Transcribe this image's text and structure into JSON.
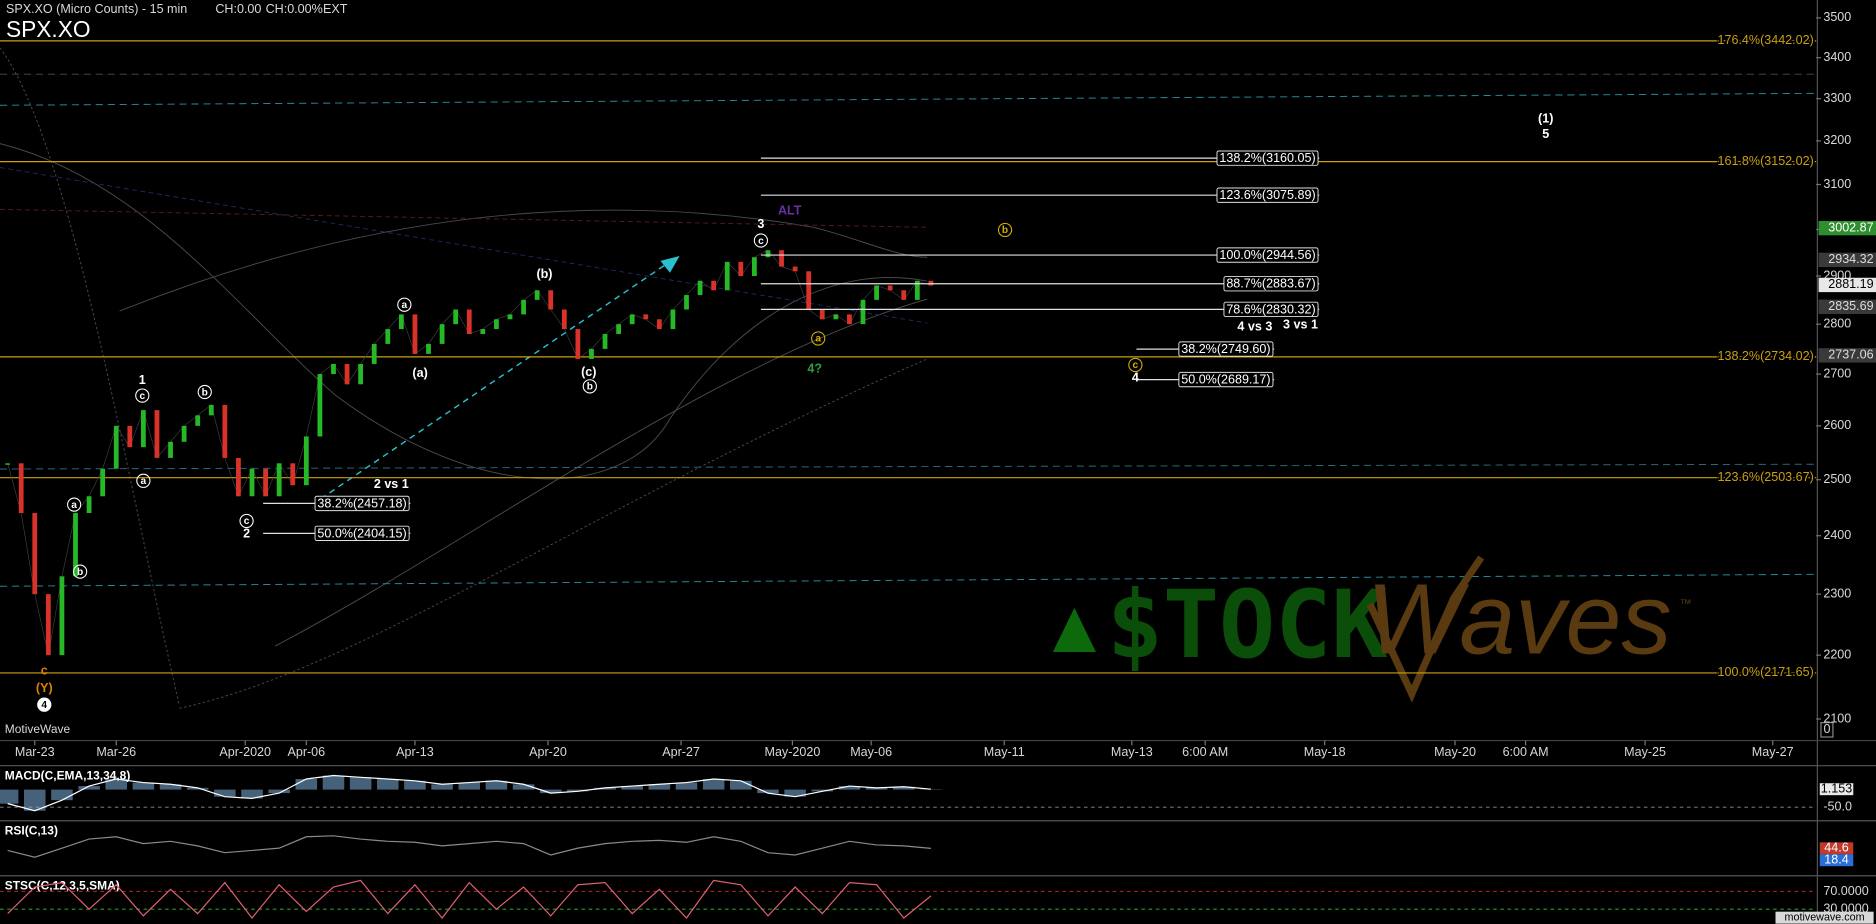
{
  "header": {
    "title": "SPX.XO (Micro Counts) - 15 min",
    "change": "CH:0.00",
    "change_pct": "CH:0.00%",
    "session": "EXT",
    "brand": "MotiveWave",
    "footer": "motivewave.com",
    "axis_corner": "0"
  },
  "watermark": {
    "left": "$TOCK",
    "right": "Waves",
    "tm": "™"
  },
  "chart_data": [
    {
      "type": "line",
      "title": "SPX.XO",
      "log_scale": true,
      "x": [
        -1,
        -0.5,
        0,
        0.5,
        1,
        1.5,
        2,
        2.5,
        3,
        3.5,
        4,
        4.5,
        5,
        5.5,
        6,
        6.5,
        7,
        7.5,
        8,
        8.5,
        9,
        9.5,
        10,
        10.5,
        11,
        11.5,
        12,
        12.5,
        13,
        13.5,
        14,
        14.5,
        15,
        15.5,
        16,
        16.5,
        17,
        17.5,
        18,
        18.5,
        19,
        19.5,
        20,
        20.5,
        21,
        21.5,
        22,
        22.5,
        23,
        23.5,
        24,
        24.5,
        25,
        25.5,
        26,
        26.5,
        27,
        27.5,
        28,
        28.5,
        29,
        29.5,
        30,
        30.5,
        31,
        31.5,
        32,
        32.5,
        33
      ],
      "series": [
        {
          "color": "#26b826",
          "down_color": "#d8322a",
          "values": [
            2530,
            2440,
            2300,
            2200,
            2330,
            2440,
            2470,
            2520,
            2600,
            2560,
            2630,
            2540,
            2570,
            2600,
            2620,
            2640,
            2540,
            2470,
            2520,
            2470,
            2530,
            2490,
            2580,
            2700,
            2720,
            2680,
            2720,
            2760,
            2790,
            2820,
            2740,
            2760,
            2800,
            2830,
            2780,
            2790,
            2810,
            2820,
            2850,
            2870,
            2830,
            2790,
            2730,
            2750,
            2780,
            2800,
            2820,
            2810,
            2790,
            2830,
            2860,
            2890,
            2870,
            2930,
            2900,
            2940,
            2955,
            2920,
            2910,
            2830,
            2810,
            2820,
            2800,
            2850,
            2880,
            2870,
            2850,
            2890,
            2880
          ]
        }
      ],
      "xlim": [
        -1.28,
        65.6
      ],
      "xticks": [
        {
          "value": 0,
          "label": "Mar-23"
        },
        {
          "value": 3,
          "label": "Mar-26"
        },
        {
          "value": 7.75,
          "label": "Apr-2020"
        },
        {
          "value": 10,
          "label": "Apr-06"
        },
        {
          "value": 14,
          "label": "Apr-13"
        },
        {
          "value": 18.9,
          "label": "Apr-20"
        },
        {
          "value": 23.8,
          "label": "Apr-27"
        },
        {
          "value": 27.9,
          "label": "May-2020"
        },
        {
          "value": 30.8,
          "label": "May-06"
        },
        {
          "value": 35.7,
          "label": "May-11"
        },
        {
          "value": 40.4,
          "label": "May-13"
        },
        {
          "value": 43.1,
          "label": "6:00 AM"
        },
        {
          "value": 47.5,
          "label": "May-18"
        },
        {
          "value": 52.3,
          "label": "May-20"
        },
        {
          "value": 54.9,
          "label": "6:00 AM"
        },
        {
          "value": 59.3,
          "label": "May-25"
        },
        {
          "value": 64,
          "label": "May-27"
        }
      ],
      "ylim": [
        2069,
        3546
      ],
      "yticks": [
        2100,
        2200,
        2300,
        2400,
        2500,
        2600,
        2700,
        2800,
        2900,
        3000,
        3100,
        3200,
        3300,
        3400,
        3500
      ],
      "level_color": "#c9a010",
      "levels": [
        {
          "value": 3442.02,
          "label": "176.4%(3442.02)"
        },
        {
          "value": 3152.02,
          "label": "161.8%(3152.02)"
        },
        {
          "value": 2734.02,
          "label": "138.2%(2734.02)"
        },
        {
          "value": 2503.67,
          "label": "123.6%(2503.67)"
        },
        {
          "value": 2171.65,
          "label": "100.0%(2171.65)"
        }
      ],
      "fib_boxes": [
        {
          "value": 3160.05,
          "label": "138.2%(3160.05)",
          "x": [
            26.74,
            47.3
          ]
        },
        {
          "value": 3075.89,
          "label": "123.6%(3075.89)",
          "x": [
            26.74,
            47.3
          ]
        },
        {
          "value": 2944.56,
          "label": "100.0%(2944.56)",
          "x": [
            26.74,
            47.3
          ]
        },
        {
          "value": 2883.67,
          "label": "88.7%(2883.67)",
          "x": [
            26.74,
            47.3
          ]
        },
        {
          "value": 2830.32,
          "label": "78.6%(2830.32)",
          "x": [
            26.74,
            47.3
          ]
        },
        {
          "value": 2749.6,
          "label": "38.2%(2749.60)",
          "x": [
            40.57,
            45.64
          ]
        },
        {
          "value": 2689.17,
          "label": "50.0%(2689.17)",
          "x": [
            40.57,
            45.64
          ]
        },
        {
          "value": 2457.18,
          "label": "38.2%(2457.18)",
          "x": [
            8.41,
            13.83
          ]
        },
        {
          "value": 2404.15,
          "label": "50.0%(2404.15)",
          "x": [
            8.41,
            13.83
          ]
        }
      ],
      "price_markers": [
        {
          "value": 3002.87,
          "color": "#2f8f2f",
          "text_color": "#ffffff"
        },
        {
          "value": 2934.32,
          "color": "#3a3a3a",
          "text_color": "#dddddd"
        },
        {
          "value": 2881.19,
          "color": "#e8e8e8",
          "text_color": "#000000"
        },
        {
          "value": 2835.69,
          "color": "#3a3a3a",
          "text_color": "#dddddd"
        },
        {
          "value": 2737.06,
          "color": "#3a3a3a",
          "text_color": "#dddddd"
        }
      ],
      "annotations": [
        {
          "text": "1",
          "x": 3.96,
          "y": 2688,
          "color": "#ffffff"
        },
        {
          "text": "c",
          "x": 3.96,
          "y": 2658,
          "color": "#ffffff",
          "circled": true
        },
        {
          "text": "a",
          "x": 1.45,
          "y": 2455,
          "color": "#ffffff",
          "circled": true
        },
        {
          "text": "b",
          "x": 1.67,
          "y": 2338,
          "color": "#ffffff",
          "circled": true
        },
        {
          "text": "a",
          "x": 4.0,
          "y": 2498,
          "color": "#ffffff",
          "circled": true
        },
        {
          "text": "b",
          "x": 6.26,
          "y": 2665,
          "color": "#ffffff",
          "circled": true
        },
        {
          "text": "c",
          "x": 7.8,
          "y": 2426,
          "color": "#ffffff",
          "circled": true
        },
        {
          "text": "2",
          "x": 7.8,
          "y": 2404,
          "color": "#ffffff"
        },
        {
          "text": "2 vs 1",
          "x": 13.13,
          "y": 2492,
          "color": "#ffffff"
        },
        {
          "text": "a",
          "x": 13.61,
          "y": 2840,
          "color": "#ffffff",
          "circled": true
        },
        {
          "text": "(a)",
          "x": 14.19,
          "y": 2702,
          "color": "#ffffff"
        },
        {
          "text": "(b)",
          "x": 18.77,
          "y": 2904,
          "color": "#ffffff"
        },
        {
          "text": "(c)",
          "x": 20.4,
          "y": 2704,
          "color": "#ffffff"
        },
        {
          "text": "b",
          "x": 20.44,
          "y": 2676,
          "color": "#ffffff",
          "circled": true
        },
        {
          "text": "3",
          "x": 26.74,
          "y": 3012,
          "color": "#ffffff"
        },
        {
          "text": "c",
          "x": 26.74,
          "y": 2976,
          "color": "#ffffff",
          "circled": true
        },
        {
          "text": "ALT",
          "x": 27.8,
          "y": 3042,
          "color": "#6b2fa0"
        },
        {
          "text": "b",
          "x": 35.73,
          "y": 2999,
          "color": "#d4b000",
          "circled": true
        },
        {
          "text": "a",
          "x": 28.85,
          "y": 2771,
          "color": "#d4b000",
          "circled": true
        },
        {
          "text": "4?",
          "x": 28.72,
          "y": 2711,
          "color": "#3a9a3a"
        },
        {
          "text": "c",
          "x": 40.53,
          "y": 2718,
          "color": "#d4b000",
          "circled": true
        },
        {
          "text": "4",
          "x": 40.53,
          "y": 2693,
          "color": "#ffffff"
        },
        {
          "text": "4 vs 3",
          "x": 44.93,
          "y": 2795,
          "color": "#ffffff"
        },
        {
          "text": "3 vs 1",
          "x": 46.61,
          "y": 2799,
          "color": "#ffffff"
        },
        {
          "text": "(1)",
          "x": 55.64,
          "y": 3253,
          "color": "#ffffff"
        },
        {
          "text": "5",
          "x": 55.64,
          "y": 3216,
          "color": "#ffffff"
        },
        {
          "text": "c",
          "x": 0.35,
          "y": 2175,
          "color": "#e08000"
        },
        {
          "text": "(Y)",
          "x": 0.35,
          "y": 2148,
          "color": "#e08000"
        },
        {
          "text": "4",
          "x": 0.35,
          "y": 2122,
          "color": "#000000",
          "circled": true,
          "filled": true
        }
      ]
    },
    {
      "type": "line",
      "title": "MACD(C,EMA,13,34,8)",
      "histogram_color": "#7fb3e0",
      "x": [
        -1,
        0,
        1,
        2,
        3,
        4,
        5,
        6,
        7,
        8,
        9,
        10,
        11,
        12,
        13,
        14,
        15,
        16,
        17,
        18,
        19,
        20,
        21,
        22,
        23,
        24,
        25,
        26,
        27,
        28,
        29,
        30,
        31,
        32,
        33
      ],
      "series": [
        {
          "color": "#ffffff",
          "values": [
            -40,
            -60,
            -30,
            10,
            30,
            20,
            15,
            5,
            -20,
            -25,
            -10,
            30,
            40,
            35,
            30,
            25,
            15,
            20,
            25,
            15,
            -10,
            -5,
            5,
            10,
            15,
            20,
            30,
            25,
            -10,
            -20,
            -5,
            10,
            5,
            8,
            1.153
          ]
        }
      ],
      "ylim": [
        -85,
        61
      ],
      "yticks": [
        {
          "value": -50,
          "label": "-50.0"
        }
      ],
      "markers": [
        {
          "value": 1.153,
          "color": "#e8e8e8",
          "text_color": "#000000"
        }
      ]
    },
    {
      "type": "line",
      "title": "RSI(C,13)",
      "x": [
        -1,
        0,
        1,
        2,
        3,
        4,
        5,
        6,
        7,
        8,
        9,
        10,
        11,
        12,
        13,
        14,
        15,
        16,
        17,
        18,
        19,
        20,
        21,
        22,
        23,
        24,
        25,
        26,
        27,
        28,
        29,
        30,
        31,
        32,
        33
      ],
      "series": [
        {
          "color": "#8a8a8a",
          "values": [
            40,
            25,
            45,
            65,
            70,
            55,
            60,
            50,
            35,
            40,
            45,
            70,
            72,
            65,
            60,
            58,
            50,
            55,
            60,
            55,
            30,
            45,
            55,
            60,
            62,
            58,
            70,
            60,
            35,
            30,
            45,
            60,
            52,
            50,
            44.6
          ]
        }
      ],
      "ylim": [
        0,
        100
      ],
      "yticks": [],
      "markers": [
        {
          "value": 44.6,
          "color": "#c0392b",
          "text_color": "#ffffff"
        },
        {
          "value": 18.4,
          "color": "#2a6fd6",
          "text_color": "#ffffff"
        }
      ]
    },
    {
      "type": "line",
      "title": "STSC(C,12,3,5,SMA)",
      "x": [
        -1,
        0,
        1,
        2,
        3,
        4,
        5,
        6,
        7,
        8,
        9,
        10,
        11,
        12,
        13,
        14,
        15,
        16,
        17,
        18,
        19,
        20,
        21,
        22,
        23,
        24,
        25,
        26,
        27,
        28,
        29,
        30,
        31,
        32,
        33
      ],
      "series": [
        {
          "color": "#e06070",
          "values": [
            20,
            80,
            90,
            30,
            85,
            15,
            75,
            20,
            90,
            10,
            85,
            25,
            80,
            95,
            20,
            85,
            10,
            90,
            30,
            80,
            15,
            85,
            90,
            20,
            75,
            10,
            95,
            85,
            15,
            80,
            20,
            90,
            85,
            10,
            60
          ]
        }
      ],
      "ylim": [
        0,
        100
      ],
      "yticks": [
        {
          "value": 70,
          "label": "70.0000"
        },
        {
          "value": 30,
          "label": "30.0000"
        }
      ],
      "tick_line_colors": [
        "#b02020",
        "#20a020"
      ],
      "markers": []
    }
  ]
}
